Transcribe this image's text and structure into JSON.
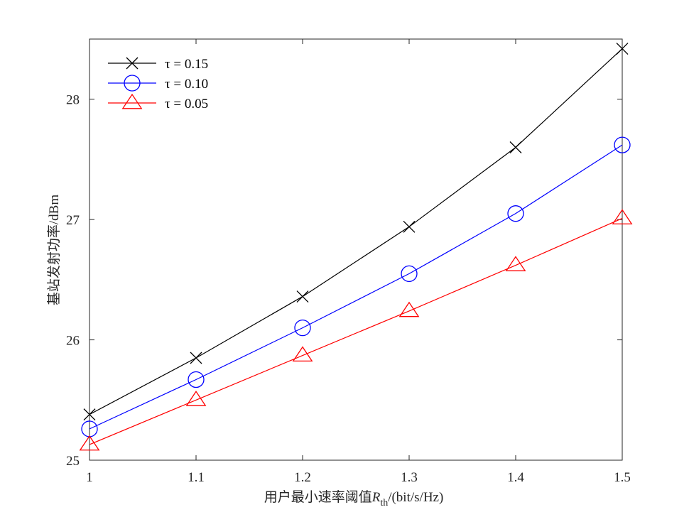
{
  "chart_data": {
    "type": "line",
    "x": [
      1.0,
      1.1,
      1.2,
      1.3,
      1.4,
      1.5
    ],
    "x_tick_labels": [
      "1",
      "1.1",
      "1.2",
      "1.3",
      "1.4",
      "1.5"
    ],
    "y_ticks": [
      25,
      26,
      27,
      28
    ],
    "y_tick_labels": [
      "25",
      "26",
      "27",
      "28"
    ],
    "xlim": [
      1.0,
      1.5
    ],
    "ylim": [
      25.0,
      28.5
    ],
    "xlabel_main": "用户最小速率阈值",
    "xlabel_symbol": "R",
    "xlabel_subscript": "th",
    "xlabel_unit": "/(bit/s/Hz)",
    "ylabel": "基站发射功率/dBm",
    "grid": false,
    "legend_position": "top-left",
    "series": [
      {
        "name": "τ = 0.15",
        "color": "#000000",
        "marker": "x",
        "values": [
          25.38,
          25.85,
          26.36,
          26.94,
          27.6,
          28.42
        ]
      },
      {
        "name": "τ = 0.10",
        "color": "#0000ff",
        "marker": "circle",
        "values": [
          25.26,
          25.67,
          26.1,
          26.55,
          27.05,
          27.62
        ]
      },
      {
        "name": "τ = 0.05",
        "color": "#ff0000",
        "marker": "triangle",
        "values": [
          25.13,
          25.5,
          25.87,
          26.24,
          26.62,
          27.01
        ]
      }
    ]
  }
}
